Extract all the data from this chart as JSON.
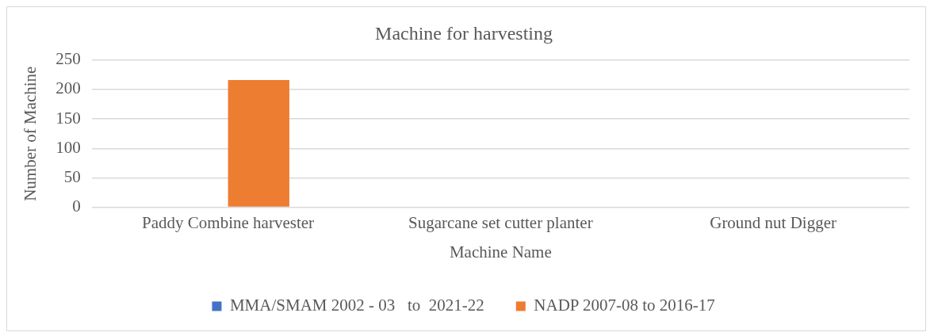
{
  "chart_data": {
    "type": "bar",
    "title": "Machine for harvesting",
    "xlabel": "Machine Name",
    "ylabel": "Number of Machine",
    "categories": [
      "Paddy Combine harvester",
      "Sugarcane set cutter planter",
      "Ground nut Digger"
    ],
    "series": [
      {
        "name": "MMA/SMAM 2002 - 03   to  2021-22",
        "color": "#4472c4",
        "values": [
          0,
          0,
          0
        ]
      },
      {
        "name": "NADP 2007-08 to 2016-17",
        "color": "#ed7d31",
        "values": [
          216,
          0,
          0
        ]
      }
    ],
    "ylim": [
      0,
      250
    ],
    "yticks": [
      0,
      50,
      100,
      150,
      200,
      250
    ],
    "grid": "y",
    "legend": "bottom"
  }
}
